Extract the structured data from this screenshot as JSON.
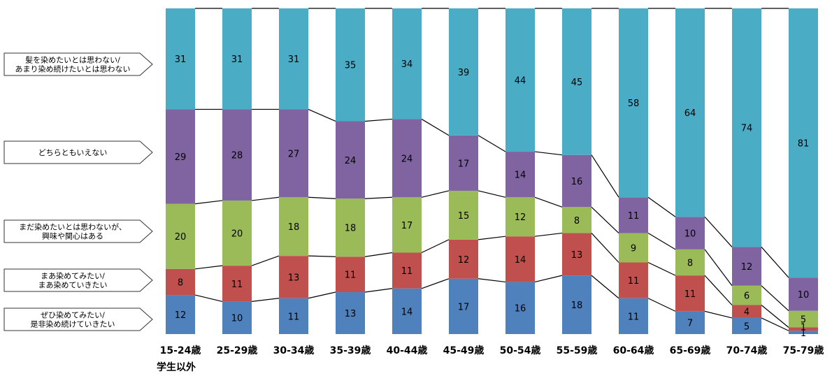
{
  "chart_data": {
    "type": "bar",
    "stacked": true,
    "normalized_percent": true,
    "categories": [
      "15-24歳",
      "25-29歳",
      "30-34歳",
      "35-39歳",
      "40-44歳",
      "45-49歳",
      "50-54歳",
      "55-59歳",
      "60-64歳",
      "65-69歳",
      "70-74歳",
      "75-79歳"
    ],
    "category_sublabel": "学生以外",
    "series": [
      {
        "name": "ぜひ染めてみたい/\n是非染め続けていきたい",
        "color": "#4f81bd",
        "values": [
          12,
          10,
          11,
          13,
          14,
          17,
          16,
          18,
          11,
          7,
          5,
          1
        ]
      },
      {
        "name": "まあ染めてみたい/\nまあ染めていきたい",
        "color": "#c0504d",
        "values": [
          8,
          11,
          13,
          11,
          11,
          12,
          14,
          13,
          11,
          11,
          4,
          1
        ]
      },
      {
        "name": "まだ染めたいとは思わないが、\n興味や関心はある",
        "color": "#9bbb59",
        "values": [
          20,
          20,
          18,
          18,
          17,
          15,
          12,
          8,
          9,
          8,
          6,
          5
        ]
      },
      {
        "name": "どちらともいえない",
        "color": "#8064a2",
        "values": [
          29,
          28,
          27,
          24,
          24,
          17,
          14,
          16,
          11,
          10,
          12,
          10
        ]
      },
      {
        "name": "髪を染めたいとは思わない/\nあまり染め続けたいとは思わない",
        "color": "#4bacc6",
        "values": [
          31,
          31,
          31,
          35,
          34,
          39,
          44,
          45,
          58,
          64,
          74,
          81
        ]
      }
    ],
    "legend_position": "left",
    "connector_lines": true,
    "grid": false
  }
}
